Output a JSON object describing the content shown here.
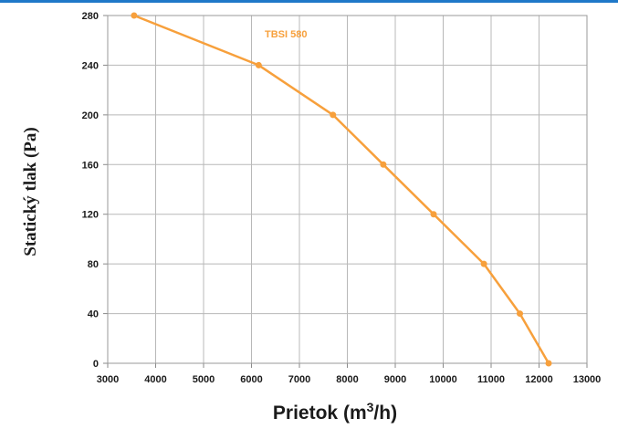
{
  "chart_data": {
    "type": "line",
    "title": "",
    "xlabel": "Prietok (m",
    "xlabel_sup": "3",
    "xlabel_tail": "/h)",
    "ylabel": "Statický tlak (Pa)",
    "xlim": [
      3000,
      13000
    ],
    "ylim": [
      0,
      280
    ],
    "xticks": [
      3000,
      4000,
      5000,
      6000,
      7000,
      8000,
      9000,
      10000,
      11000,
      12000,
      13000
    ],
    "yticks": [
      0,
      40,
      80,
      120,
      160,
      200,
      240,
      280
    ],
    "grid": true,
    "series": [
      {
        "name": "TBSI 580",
        "color": "#f7a03c",
        "x": [
          3550,
          6150,
          7700,
          8750,
          9800,
          10850,
          11600,
          12200
        ],
        "y": [
          280,
          240,
          200,
          160,
          120,
          80,
          40,
          0
        ]
      }
    ],
    "accent_color": "#1f78c8"
  }
}
